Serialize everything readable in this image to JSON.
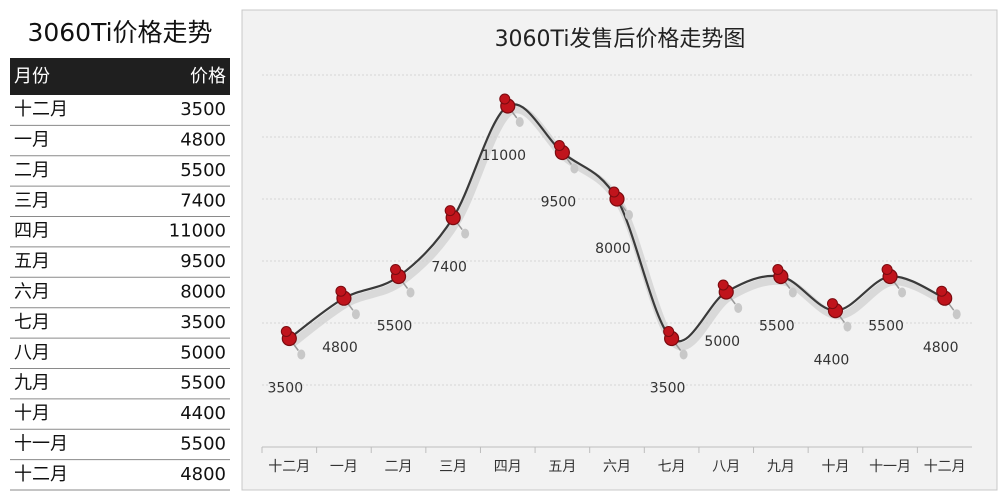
{
  "table": {
    "title": "3060Ti价格走势",
    "header": [
      "月份",
      "价格"
    ],
    "rows": [
      [
        "十二月",
        "3500"
      ],
      [
        "一月",
        "4800"
      ],
      [
        "二月",
        "5500"
      ],
      [
        "三月",
        "7400"
      ],
      [
        "四月",
        "11000"
      ],
      [
        "五月",
        "9500"
      ],
      [
        "六月",
        "8000"
      ],
      [
        "七月",
        "3500"
      ],
      [
        "八月",
        "5000"
      ],
      [
        "九月",
        "5500"
      ],
      [
        "十月",
        "4400"
      ],
      [
        "十一月",
        "5500"
      ],
      [
        "十二月",
        "4800"
      ]
    ]
  },
  "chart_data": {
    "type": "line",
    "title": "3060Ti发售后价格走势图",
    "categories": [
      "十二月",
      "一月",
      "二月",
      "三月",
      "四月",
      "五月",
      "六月",
      "七月",
      "八月",
      "九月",
      "十月",
      "十一月",
      "十二月"
    ],
    "values": [
      3500,
      4800,
      5500,
      7400,
      11000,
      9500,
      8000,
      3500,
      5000,
      5500,
      4400,
      5500,
      4800
    ],
    "color": "#3a3a3a",
    "marker_color": "#c0141c",
    "ylim": [
      0,
      12000
    ],
    "yticks": [
      0,
      2000,
      4000,
      6000,
      8000,
      10000,
      12000
    ],
    "grid": true,
    "smooth": true
  }
}
